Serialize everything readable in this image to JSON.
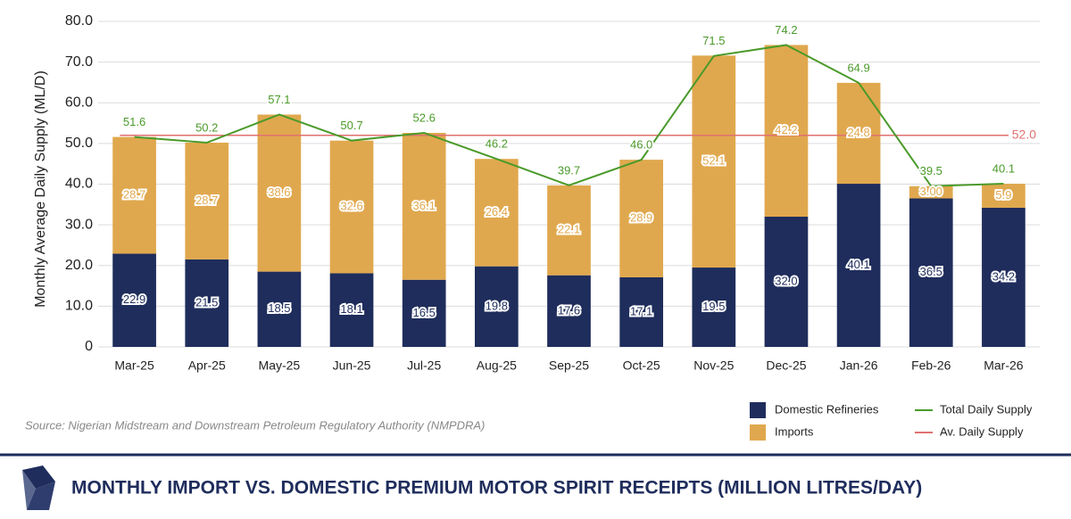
{
  "chart_data": {
    "type": "stacked-bar-line",
    "title": "MONTHLY IMPORT VS. DOMESTIC PREMIUM MOTOR SPIRIT RECEIPTS (MILLION LITRES/DAY)",
    "y_label": "Monthly Average Daily Supply (ML/D)",
    "source": "Source: Nigerian Midstream and Downstream Petroleum Regulatory Authority (NMPDRA)",
    "categories": [
      "Mar-25",
      "Apr-25",
      "May-25",
      "Jun-25",
      "Jul-25",
      "Aug-25",
      "Sep-25",
      "Oct-25",
      "Nov-25",
      "Dec-25",
      "Jan-26",
      "Feb-26",
      "Mar-26"
    ],
    "series": [
      {
        "name": "Domestic Refineries",
        "type": "bar",
        "color": "#1f2d5c",
        "values": [
          22.9,
          21.5,
          18.5,
          18.1,
          16.5,
          19.8,
          17.6,
          17.1,
          19.5,
          32.0,
          40.1,
          36.5,
          34.2
        ],
        "value_labels": [
          "22.9",
          "21.5",
          "18.5",
          "18.1",
          "16.5",
          "19.8",
          "17.6",
          "17.1",
          "19.5",
          "32.0",
          "40.1",
          "36.5",
          "34.2"
        ]
      },
      {
        "name": "Imports",
        "type": "bar",
        "color": "#e0a84e",
        "values": [
          28.7,
          28.7,
          38.6,
          32.6,
          36.1,
          26.4,
          22.1,
          28.9,
          52.1,
          42.2,
          24.8,
          3.0,
          5.9
        ],
        "value_labels": [
          "28.7",
          "28.7",
          "38.6",
          "32.6",
          "36.1",
          "26.4",
          "22.1",
          "28.9",
          "52.1",
          "42.2",
          "24.8",
          "3.00",
          "5.9"
        ]
      },
      {
        "name": "Total Daily Supply",
        "type": "line",
        "color": "#4a9a2a",
        "values": [
          51.6,
          50.2,
          57.1,
          50.7,
          52.6,
          46.2,
          39.7,
          46.0,
          71.5,
          74.2,
          64.9,
          39.5,
          40.1
        ],
        "value_labels": [
          "51.6",
          "50.2",
          "57.1",
          "50.7",
          "52.6",
          "46.2",
          "39.7",
          "46.0",
          "71.5",
          "74.2",
          "64.9",
          "39.5",
          "40.1"
        ]
      }
    ],
    "reference_line": {
      "name": "Av. Daily Supply",
      "color": "#e07070",
      "value": 52.0,
      "value_label": "52.0"
    },
    "ylim": [
      0,
      80
    ],
    "yticks": [
      0,
      {
        "value": 10,
        "label": "10.0"
      },
      {
        "value": 20,
        "label": "20.0"
      },
      {
        "value": 30,
        "label": "30.0"
      },
      {
        "value": 40,
        "label": "40.0"
      },
      {
        "value": 50,
        "label": "50.0"
      },
      {
        "value": 60,
        "label": "60.0"
      },
      {
        "value": 70,
        "label": "70.0"
      },
      {
        "value": 80,
        "label": "80.0"
      }
    ],
    "grid": true
  }
}
